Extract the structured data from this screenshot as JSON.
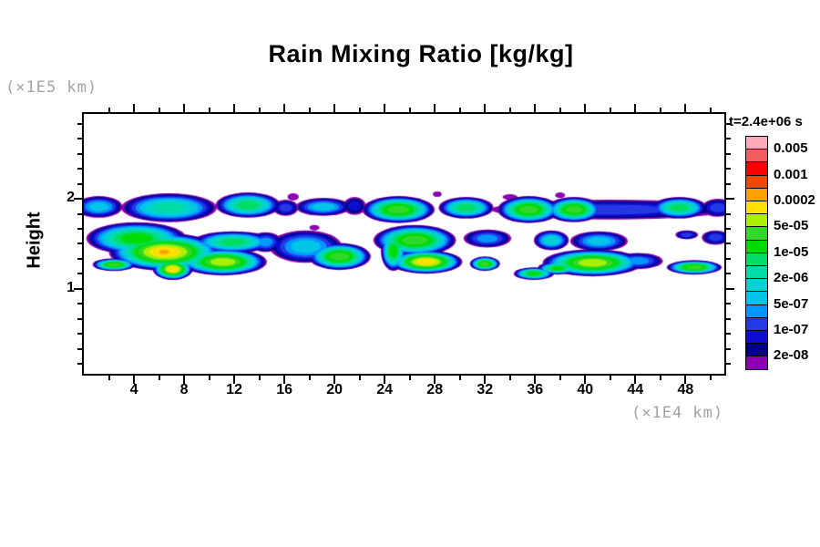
{
  "chart_data": {
    "type": "filled_contour",
    "title": "Rain Mixing Ratio [kg/kg]",
    "time_label": "t=2.4e+06 s",
    "x_axis": {
      "factor_label": "(×1E4 km)",
      "range": [
        0,
        51.1
      ],
      "major_ticks": [
        4,
        8,
        12,
        16,
        20,
        24,
        28,
        32,
        36,
        40,
        44,
        48
      ],
      "minor_tick_step": 2
    },
    "y_axis": {
      "label": "Height",
      "factor_label": "(×1E5 km)",
      "range": [
        0.06,
        2.94
      ],
      "major_ticks": [
        1,
        2
      ],
      "minor_tick_step": 0.166667
    },
    "colorbar": {
      "swatches_top_to_bottom": [
        "#FFA8B8",
        "#F25C5C",
        "#FA0000",
        "#F04800",
        "#FFA000",
        "#FFE000",
        "#A8F000",
        "#30D828",
        "#00DC00",
        "#00DC64",
        "#00DCA8",
        "#00D2D2",
        "#00C4E8",
        "#0096FF",
        "#2438E6",
        "#0D0DD0",
        "#000087",
        "#8A00B0"
      ],
      "labels_top_to_bottom": [
        "0.005",
        "0.001",
        "0.0002",
        "5e-05",
        "1e-05",
        "2e-06",
        "5e-07",
        "1e-07",
        "2e-08"
      ]
    },
    "field": {
      "description": "rain mixing ratio blobs; x in 1E4 km, h in 1E5 km, p = peak color index (0=lowest/purple .. 17=highest/pink)",
      "blobs": [
        {
          "x": 1.2,
          "h": 1.91,
          "rx": 1.9,
          "ry": 0.12,
          "p": 5
        },
        {
          "x": 6.8,
          "h": 1.9,
          "rx": 3.8,
          "ry": 0.16,
          "p": 7
        },
        {
          "x": 13.1,
          "h": 1.93,
          "rx": 2.6,
          "ry": 0.14,
          "p": 8
        },
        {
          "x": 16.1,
          "h": 1.9,
          "rx": 1.0,
          "ry": 0.09,
          "p": 3
        },
        {
          "x": 19.1,
          "h": 1.91,
          "rx": 2.2,
          "ry": 0.1,
          "p": 5
        },
        {
          "x": 21.6,
          "h": 1.92,
          "rx": 0.9,
          "ry": 0.1,
          "p": 2
        },
        {
          "x": 25.1,
          "h": 1.88,
          "rx": 2.9,
          "ry": 0.15,
          "p": 10
        },
        {
          "x": 30.5,
          "h": 1.9,
          "rx": 2.2,
          "ry": 0.12,
          "p": 8
        },
        {
          "x": 35.5,
          "h": 1.88,
          "rx": 2.5,
          "ry": 0.15,
          "p": 10
        },
        {
          "x": 39.1,
          "h": 1.88,
          "rx": 2.2,
          "ry": 0.14,
          "p": 10
        },
        {
          "x": 42.0,
          "h": 1.88,
          "rx": 9.5,
          "ry": 0.11,
          "p": 3
        },
        {
          "x": 47.5,
          "h": 1.9,
          "rx": 2.2,
          "ry": 0.12,
          "p": 8
        },
        {
          "x": 50.6,
          "h": 1.9,
          "rx": 1.3,
          "ry": 0.1,
          "p": 3
        },
        {
          "x": 4.2,
          "h": 1.56,
          "rx": 4.0,
          "ry": 0.18,
          "p": 9
        },
        {
          "x": 6.5,
          "h": 1.41,
          "rx": 4.5,
          "ry": 0.21,
          "p": 12
        },
        {
          "x": 6.4,
          "h": 1.41,
          "rx": 1.5,
          "ry": 0.09,
          "p": 13
        },
        {
          "x": 7.1,
          "h": 1.22,
          "rx": 1.6,
          "ry": 0.12,
          "p": 12
        },
        {
          "x": 11.9,
          "h": 1.52,
          "rx": 3.2,
          "ry": 0.12,
          "p": 8
        },
        {
          "x": 11.1,
          "h": 1.3,
          "rx": 3.5,
          "ry": 0.15,
          "p": 11
        },
        {
          "x": 14.5,
          "h": 1.52,
          "rx": 1.3,
          "ry": 0.11,
          "p": 4
        },
        {
          "x": 2.4,
          "h": 1.27,
          "rx": 1.7,
          "ry": 0.07,
          "p": 10
        },
        {
          "x": 17.7,
          "h": 1.47,
          "rx": 2.9,
          "ry": 0.18,
          "p": 5
        },
        {
          "x": 20.4,
          "h": 1.36,
          "rx": 2.5,
          "ry": 0.15,
          "p": 10
        },
        {
          "x": 24.7,
          "h": 1.42,
          "rx": 1.0,
          "ry": 0.22,
          "p": 9
        },
        {
          "x": 26.4,
          "h": 1.54,
          "rx": 3.3,
          "ry": 0.17,
          "p": 10
        },
        {
          "x": 27.3,
          "h": 1.3,
          "rx": 2.9,
          "ry": 0.13,
          "p": 12
        },
        {
          "x": 32.0,
          "h": 1.28,
          "rx": 1.2,
          "ry": 0.08,
          "p": 10
        },
        {
          "x": 32.2,
          "h": 1.56,
          "rx": 1.9,
          "ry": 0.1,
          "p": 4
        },
        {
          "x": 37.3,
          "h": 1.54,
          "rx": 1.4,
          "ry": 0.11,
          "p": 6
        },
        {
          "x": 41.1,
          "h": 1.53,
          "rx": 2.3,
          "ry": 0.11,
          "p": 5
        },
        {
          "x": 50.4,
          "h": 1.57,
          "rx": 1.1,
          "ry": 0.08,
          "p": 3
        },
        {
          "x": 48.1,
          "h": 1.6,
          "rx": 0.9,
          "ry": 0.05,
          "p": 3
        },
        {
          "x": 40.6,
          "h": 1.29,
          "rx": 4.0,
          "ry": 0.15,
          "p": 11
        },
        {
          "x": 37.8,
          "h": 1.23,
          "rx": 1.6,
          "ry": 0.07,
          "p": 9
        },
        {
          "x": 44.2,
          "h": 1.31,
          "rx": 2.0,
          "ry": 0.09,
          "p": 4
        },
        {
          "x": 48.7,
          "h": 1.24,
          "rx": 2.2,
          "ry": 0.08,
          "p": 10
        },
        {
          "x": 35.9,
          "h": 1.17,
          "rx": 1.6,
          "ry": 0.07,
          "p": 9
        },
        {
          "x": 16.7,
          "h": 2.02,
          "rx": 0.45,
          "ry": 0.04,
          "p": 0
        },
        {
          "x": 28.2,
          "h": 2.05,
          "rx": 0.35,
          "ry": 0.03,
          "p": 0
        },
        {
          "x": 34.0,
          "h": 2.02,
          "rx": 0.6,
          "ry": 0.03,
          "p": 0
        },
        {
          "x": 38.0,
          "h": 2.04,
          "rx": 0.4,
          "ry": 0.03,
          "p": 0
        },
        {
          "x": 18.4,
          "h": 1.68,
          "rx": 0.4,
          "ry": 0.03,
          "p": 0
        }
      ]
    }
  }
}
